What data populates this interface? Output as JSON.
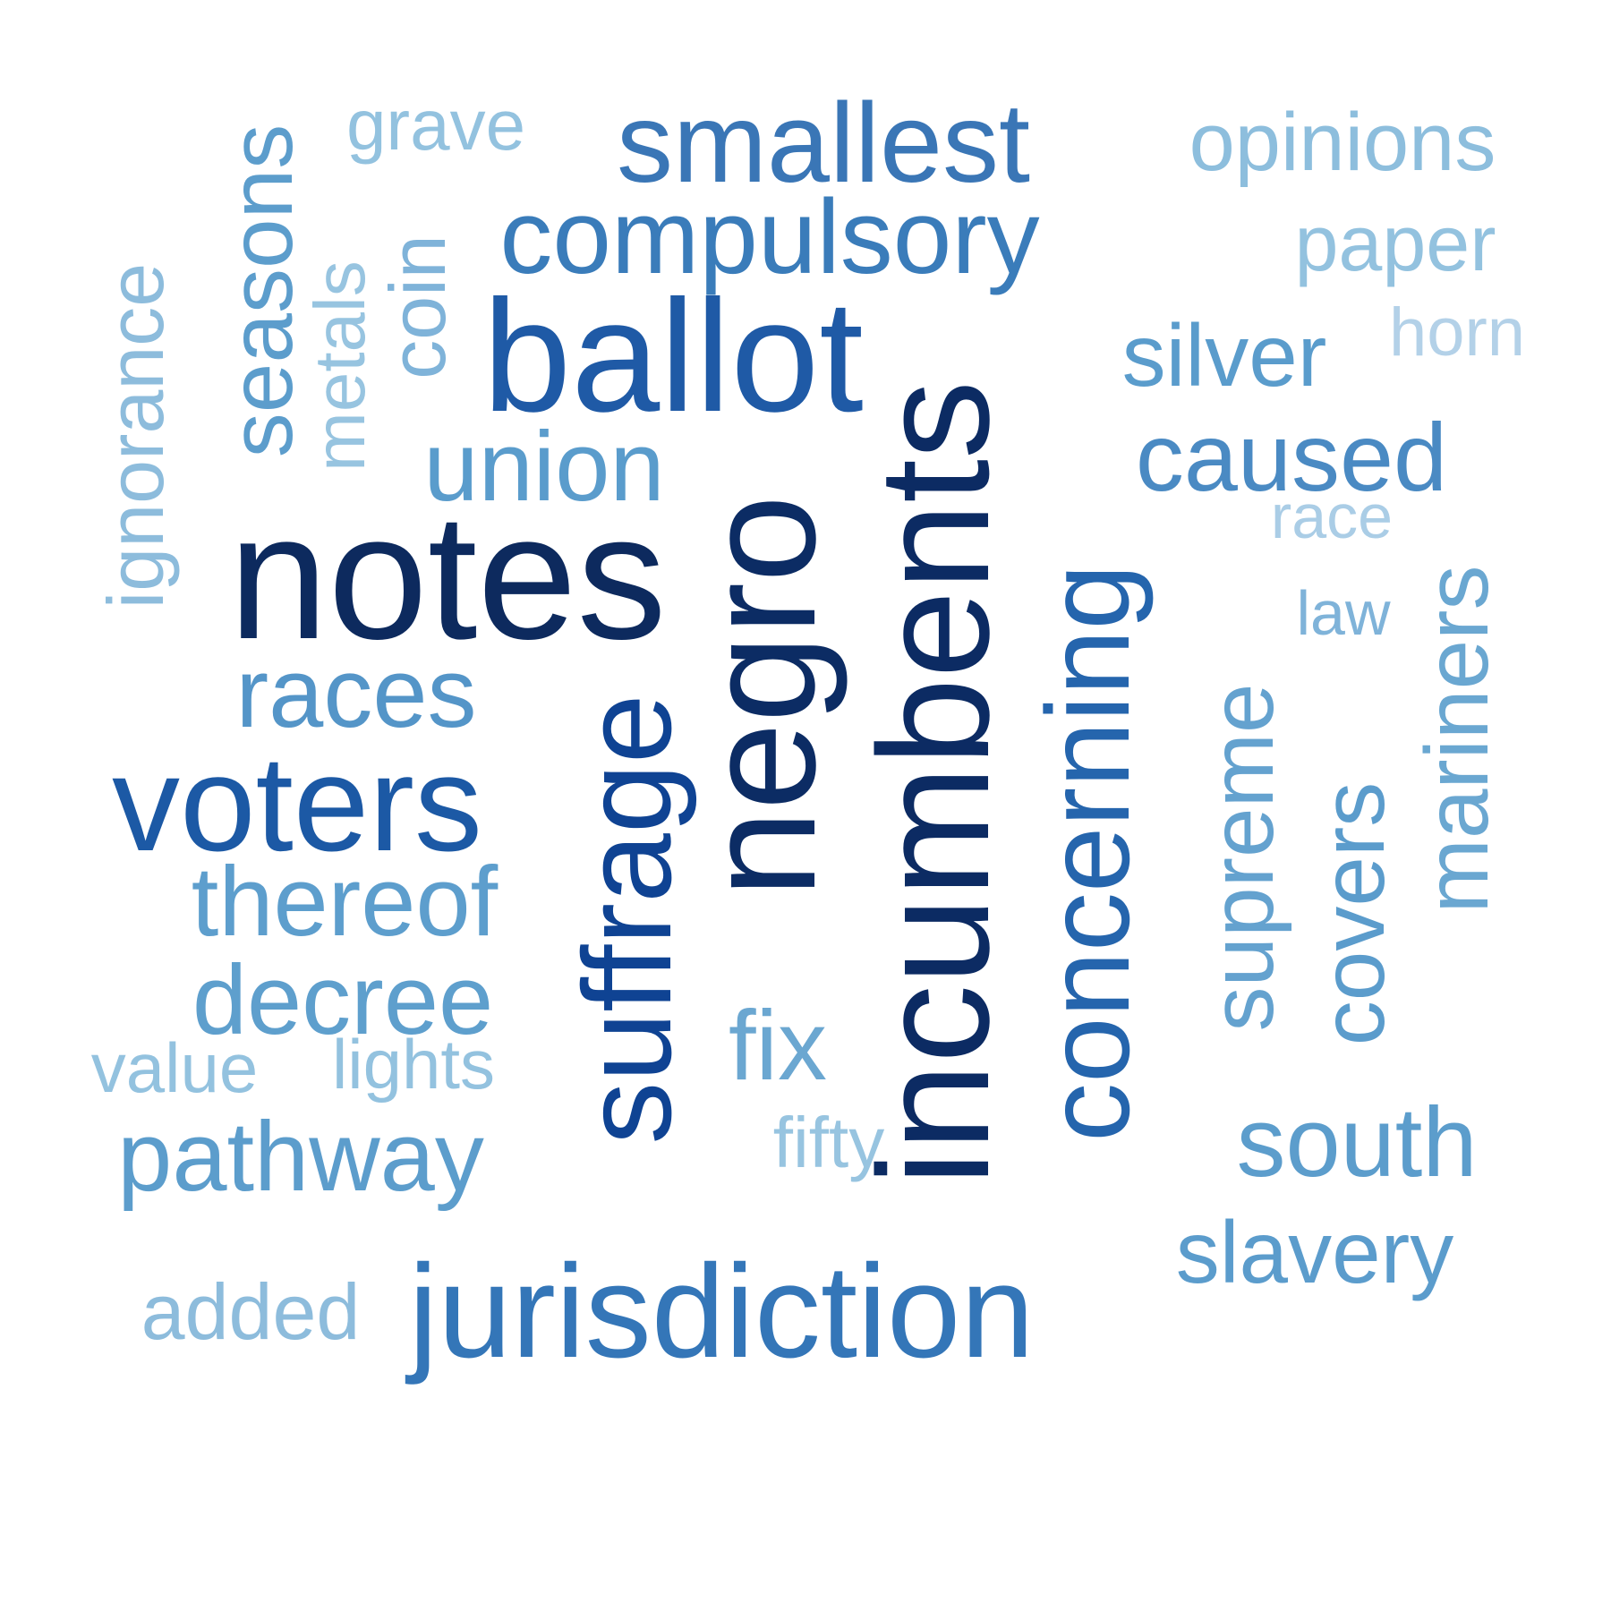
{
  "words": [
    {
      "key": "smallest",
      "text": "smallest",
      "color": "#3a76b6",
      "vertical": false
    },
    {
      "key": "compulsory",
      "text": "compulsory",
      "color": "#3a7cba",
      "vertical": false
    },
    {
      "key": "ballot",
      "text": "ballot",
      "color": "#1f5aa6",
      "vertical": false
    },
    {
      "key": "notes",
      "text": "notes",
      "color": "#0d2a5e",
      "vertical": false
    },
    {
      "key": "negro",
      "text": "negro",
      "color": "#0c2c64",
      "vertical": true
    },
    {
      "key": "incumbents",
      "text": "incumbents",
      "color": "#0c2b63",
      "vertical": true
    },
    {
      "key": "suffrage",
      "text": "suffrage",
      "color": "#0f4393",
      "vertical": true
    },
    {
      "key": "voters",
      "text": "voters",
      "color": "#1c59a5",
      "vertical": false
    },
    {
      "key": "concerning",
      "text": "concerning",
      "color": "#2565ad",
      "vertical": true
    },
    {
      "key": "jurisdiction",
      "text": "jurisdiction",
      "color": "#3476b8",
      "vertical": false
    },
    {
      "key": "silver",
      "text": "silver",
      "color": "#5a9ccc",
      "vertical": false
    },
    {
      "key": "caused",
      "text": "caused",
      "color": "#4a8ac3",
      "vertical": false
    },
    {
      "key": "union",
      "text": "union",
      "color": "#5a9ccc",
      "vertical": false
    },
    {
      "key": "seasons",
      "text": "seasons",
      "color": "#5c9dcc",
      "vertical": true
    },
    {
      "key": "races",
      "text": "races",
      "color": "#5495c8",
      "vertical": false
    },
    {
      "key": "thereof",
      "text": "thereof",
      "color": "#5d9ecd",
      "vertical": false
    },
    {
      "key": "decree",
      "text": "decree",
      "color": "#5e9fcd",
      "vertical": false
    },
    {
      "key": "pathway",
      "text": "pathway",
      "color": "#5c9dcc",
      "vertical": false
    },
    {
      "key": "supreme",
      "text": "supreme",
      "color": "#64a2cf",
      "vertical": true
    },
    {
      "key": "covers",
      "text": "covers",
      "color": "#5b9ccc",
      "vertical": true
    },
    {
      "key": "mariners",
      "text": "mariners",
      "color": "#6aa7d1",
      "vertical": true
    },
    {
      "key": "south",
      "text": "south",
      "color": "#5c9dcc",
      "vertical": false
    },
    {
      "key": "slavery",
      "text": "slavery",
      "color": "#5b9ccc",
      "vertical": false
    },
    {
      "key": "fix",
      "text": "fix",
      "color": "#6ba7d1",
      "vertical": false
    },
    {
      "key": "opinions",
      "text": "opinions",
      "color": "#8dbedd",
      "vertical": false
    },
    {
      "key": "paper",
      "text": "paper",
      "color": "#93c2df",
      "vertical": false
    },
    {
      "key": "horn",
      "text": "horn",
      "color": "#b3d1e8",
      "vertical": false
    },
    {
      "key": "race",
      "text": "race",
      "color": "#aacde6",
      "vertical": false
    },
    {
      "key": "law",
      "text": "law",
      "color": "#7fb3d9",
      "vertical": false
    },
    {
      "key": "grave",
      "text": "grave",
      "color": "#93c2df",
      "vertical": false
    },
    {
      "key": "coin",
      "text": "coin",
      "color": "#7fb3d9",
      "vertical": true
    },
    {
      "key": "metals",
      "text": "metals",
      "color": "#97c4e0",
      "vertical": true
    },
    {
      "key": "ignorance",
      "text": "ignorance",
      "color": "#8dbcdc",
      "vertical": true
    },
    {
      "key": "value",
      "text": "value",
      "color": "#93c2df",
      "vertical": false
    },
    {
      "key": "lights",
      "text": "lights",
      "color": "#93c2df",
      "vertical": false
    },
    {
      "key": "fifty",
      "text": "fifty",
      "color": "#97c4e0",
      "vertical": false
    },
    {
      "key": "added",
      "text": "added",
      "color": "#8dbcdc",
      "vertical": false
    }
  ]
}
